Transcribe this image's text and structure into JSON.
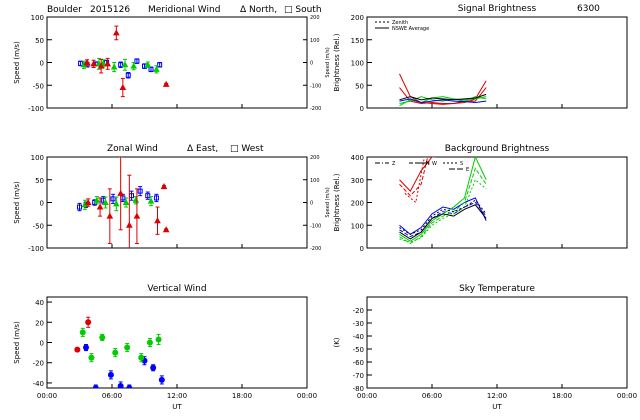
{
  "header": {
    "site": "Boulder",
    "date": "2015126",
    "wind_title": "Meridional Wind",
    "dir_north": "Δ North,",
    "dir_south": "□ South"
  },
  "chart_data": [
    {
      "id": "meridional",
      "type": "scatter",
      "ylabel": "Speed (m/s)",
      "ylabel_right": "Speed (m/s)",
      "ylim": [
        -100,
        100
      ],
      "yticks": [
        "-100",
        "-50",
        "0",
        "50",
        "100"
      ],
      "ylim_right": [
        -200,
        200
      ],
      "yticks_right": [
        "-200",
        "-100",
        "0",
        "100",
        "200"
      ],
      "series": [
        {
          "color": "#0000ff",
          "marker": "square",
          "x": [
            3.1,
            3.7,
            4.5,
            5.5,
            6.8,
            7.5,
            8.3,
            9.0,
            9.6,
            10.4
          ],
          "y": [
            -2,
            -5,
            -3,
            0,
            -5,
            -28,
            3,
            -8,
            -15,
            -5
          ],
          "err": [
            5,
            5,
            4,
            5,
            6,
            6,
            5,
            5,
            5,
            5
          ]
        },
        {
          "color": "#00cc00",
          "marker": "triangle",
          "x": [
            3.4,
            4.8,
            5.2,
            6.2,
            7.2,
            8.0,
            9.3,
            10.1
          ],
          "y": [
            -5,
            -3,
            -2,
            -10,
            -5,
            -8,
            -5,
            -15
          ],
          "err": [
            8,
            12,
            8,
            10,
            12,
            8,
            6,
            8
          ]
        },
        {
          "color": "#dd0000",
          "marker": "triangle",
          "x": [
            3.7,
            4.3,
            5.0,
            5.6,
            6.4,
            7.0,
            11.0
          ],
          "y": [
            0,
            -3,
            -8,
            -3,
            65,
            -55,
            -48
          ],
          "err": [
            6,
            8,
            15,
            12,
            15,
            20,
            2
          ]
        }
      ]
    },
    {
      "id": "signal",
      "type": "line",
      "title": "Signal Brightness",
      "title2": "6300",
      "ylabel": "Brightness (Rel.)",
      "ylim": [
        0,
        200
      ],
      "yticks": [
        "0",
        "50",
        "100",
        "150",
        "200"
      ],
      "legend": [
        {
          "label": "Zenith",
          "dash": "2,2"
        },
        {
          "label": "NSWE Average",
          "dash": ""
        }
      ],
      "series": [
        {
          "color": "#dd0000",
          "x": [
            3,
            4,
            5,
            6,
            7,
            8,
            9,
            10,
            11
          ],
          "y": [
            75,
            25,
            12,
            10,
            8,
            10,
            12,
            20,
            60
          ]
        },
        {
          "color": "#dd0000",
          "x": [
            3,
            4,
            5,
            6,
            7,
            8,
            9,
            10,
            11
          ],
          "y": [
            45,
            15,
            10,
            12,
            10,
            10,
            15,
            15,
            45
          ]
        },
        {
          "color": "#00cc00",
          "x": [
            3,
            4,
            5,
            6,
            7,
            8,
            9,
            10,
            11
          ],
          "y": [
            10,
            15,
            25,
            18,
            15,
            20,
            18,
            20,
            25
          ]
        },
        {
          "color": "#00cc00",
          "x": [
            3,
            4,
            5,
            6,
            7,
            8,
            9,
            10,
            11
          ],
          "y": [
            5,
            18,
            12,
            22,
            25,
            20,
            15,
            25,
            20
          ]
        },
        {
          "color": "#0000ff",
          "x": [
            3,
            4,
            5,
            6,
            7,
            8,
            9,
            10,
            11
          ],
          "y": [
            15,
            20,
            12,
            15,
            18,
            15,
            14,
            12,
            15
          ]
        },
        {
          "color": "#000000",
          "x": [
            3,
            4,
            5,
            6,
            7,
            8,
            9,
            10,
            11
          ],
          "y": [
            18,
            25,
            18,
            22,
            20,
            18,
            20,
            22,
            30
          ]
        }
      ]
    },
    {
      "id": "zonal",
      "type": "scatter",
      "title": "Zonal Wind",
      "dir_east": "Δ East,",
      "dir_west": "□ West",
      "ylabel": "Speed (m/s)",
      "ylabel_right": "Speed (m/s)",
      "ylim": [
        -100,
        100
      ],
      "yticks": [
        "-100",
        "-50",
        "0",
        "50",
        "100"
      ],
      "ylim_right": [
        -200,
        200
      ],
      "yticks_right": [
        "-200",
        "-100",
        "0",
        "100",
        "200"
      ],
      "series": [
        {
          "color": "#0000ff",
          "marker": "square",
          "x": [
            3.0,
            3.6,
            4.4,
            5.2,
            6.1,
            7.0,
            7.8,
            8.6,
            9.3,
            10.1
          ],
          "y": [
            -10,
            -5,
            0,
            5,
            8,
            10,
            15,
            25,
            15,
            10
          ],
          "err": [
            8,
            6,
            6,
            8,
            10,
            8,
            10,
            10,
            8,
            8
          ]
        },
        {
          "color": "#00cc00",
          "marker": "triangle",
          "x": [
            3.5,
            4.6,
            5.4,
            6.4,
            7.3,
            8.2,
            9.6
          ],
          "y": [
            -5,
            5,
            0,
            -3,
            0,
            5,
            3
          ],
          "err": [
            10,
            8,
            12,
            15,
            10,
            8,
            10
          ]
        },
        {
          "color": "#dd0000",
          "marker": "triangle",
          "x": [
            3.8,
            4.9,
            5.8,
            6.8,
            7.6,
            8.3,
            10.2,
            10.8,
            11.0
          ],
          "y": [
            0,
            -10,
            -30,
            20,
            -50,
            -30,
            -40,
            35,
            -60
          ],
          "err": [
            8,
            20,
            60,
            80,
            110,
            60,
            30,
            2,
            2
          ]
        }
      ]
    },
    {
      "id": "background",
      "type": "line",
      "title": "Background Brightness",
      "ylabel": "Brightness (Rel.)",
      "ylim": [
        0,
        400
      ],
      "yticks": [
        "0",
        "100",
        "200",
        "300",
        "400"
      ],
      "legend": [
        {
          "label": "Z",
          "dash": "5,2,1,2"
        },
        {
          "label": "N",
          "dash": "4,2"
        },
        {
          "label": "S",
          "dash": "2,2"
        },
        {
          "label": "W",
          "dash": ""
        },
        {
          "label": "E",
          "dash": "6,2"
        }
      ],
      "series": [
        {
          "color": "#dd0000",
          "dash": "",
          "x": [
            3,
            4,
            5,
            6,
            6.3
          ],
          "y": [
            300,
            250,
            340,
            400,
            400
          ]
        },
        {
          "color": "#dd0000",
          "dash": "4,2",
          "x": [
            3,
            4,
            5,
            5.6
          ],
          "y": [
            280,
            230,
            280,
            400
          ]
        },
        {
          "color": "#dd0000",
          "dash": "2,2",
          "x": [
            3.5,
            4.5,
            5.3
          ],
          "y": [
            240,
            200,
            400
          ]
        },
        {
          "color": "#0000ff",
          "dash": "",
          "x": [
            3,
            4,
            5,
            6,
            7,
            8,
            9,
            10,
            11
          ],
          "y": [
            100,
            60,
            90,
            150,
            180,
            170,
            200,
            220,
            120
          ]
        },
        {
          "color": "#0000ff",
          "dash": "4,2",
          "x": [
            3,
            4,
            5,
            6,
            7,
            8,
            9,
            10,
            11
          ],
          "y": [
            80,
            50,
            70,
            130,
            160,
            150,
            180,
            200,
            140
          ]
        },
        {
          "color": "#00cc00",
          "dash": "",
          "x": [
            3,
            4,
            5,
            6,
            7,
            8,
            9,
            10,
            11
          ],
          "y": [
            60,
            30,
            60,
            120,
            150,
            180,
            220,
            400,
            300
          ]
        },
        {
          "color": "#00cc00",
          "dash": "4,2",
          "x": [
            3,
            4,
            5,
            6,
            7,
            8,
            9,
            10,
            11
          ],
          "y": [
            50,
            20,
            50,
            110,
            140,
            160,
            200,
            350,
            280
          ]
        },
        {
          "color": "#00cc00",
          "dash": "2,2",
          "x": [
            3,
            4,
            5,
            6,
            7,
            8,
            9,
            10,
            11
          ],
          "y": [
            40,
            25,
            45,
            100,
            130,
            150,
            180,
            300,
            260
          ]
        },
        {
          "color": "#000000",
          "dash": "2,2",
          "x": [
            3,
            4,
            5,
            6,
            7,
            8,
            9,
            10,
            11
          ],
          "y": [
            90,
            60,
            80,
            140,
            170,
            160,
            180,
            210,
            150
          ]
        },
        {
          "color": "#000000",
          "dash": "",
          "x": [
            3,
            4,
            5,
            6,
            7,
            8,
            9,
            10,
            11
          ],
          "y": [
            70,
            40,
            70,
            130,
            150,
            140,
            170,
            190,
            130
          ]
        }
      ]
    },
    {
      "id": "vertical",
      "type": "scatter",
      "title": "Vertical Wind",
      "ylabel": "Speed (m/s)",
      "xlabel": "UT",
      "ylim": [
        -45,
        45
      ],
      "yticks": [
        "-40",
        "-20",
        "0",
        "20",
        "40"
      ],
      "xticks": [
        "00:00",
        "06:00",
        "12:00",
        "18:00",
        "00:00"
      ],
      "series": [
        {
          "color": "#0000ff",
          "marker": "circle",
          "x": [
            3.6,
            4.5,
            5.9,
            6.8,
            7.6,
            9.0,
            9.8,
            10.6
          ],
          "y": [
            -5,
            -45,
            -32,
            -43,
            -45,
            -18,
            -25,
            -37
          ],
          "err": [
            3,
            3,
            4,
            4,
            3,
            4,
            3,
            4
          ]
        },
        {
          "color": "#00cc00",
          "marker": "circle",
          "x": [
            3.3,
            4.1,
            5.1,
            6.3,
            7.4,
            8.7,
            9.5,
            10.3
          ],
          "y": [
            10,
            -15,
            5,
            -10,
            -5,
            -15,
            0,
            3
          ],
          "err": [
            4,
            4,
            3,
            4,
            4,
            4,
            4,
            5
          ]
        },
        {
          "color": "#dd0000",
          "marker": "circle",
          "x": [
            2.8,
            3.8
          ],
          "y": [
            -7,
            20
          ],
          "err": [
            0,
            5
          ]
        }
      ]
    },
    {
      "id": "sky",
      "type": "line",
      "title": "Sky Temperature",
      "ylabel": "(K)",
      "xlabel": "UT",
      "ylim": [
        -80,
        -10
      ],
      "yticks": [
        "-80",
        "-70",
        "-60",
        "-50",
        "-40",
        "-30",
        "-20"
      ],
      "xticks": [
        "00:00",
        "06:00",
        "12:00",
        "18:00",
        "00:00"
      ],
      "series": []
    }
  ]
}
